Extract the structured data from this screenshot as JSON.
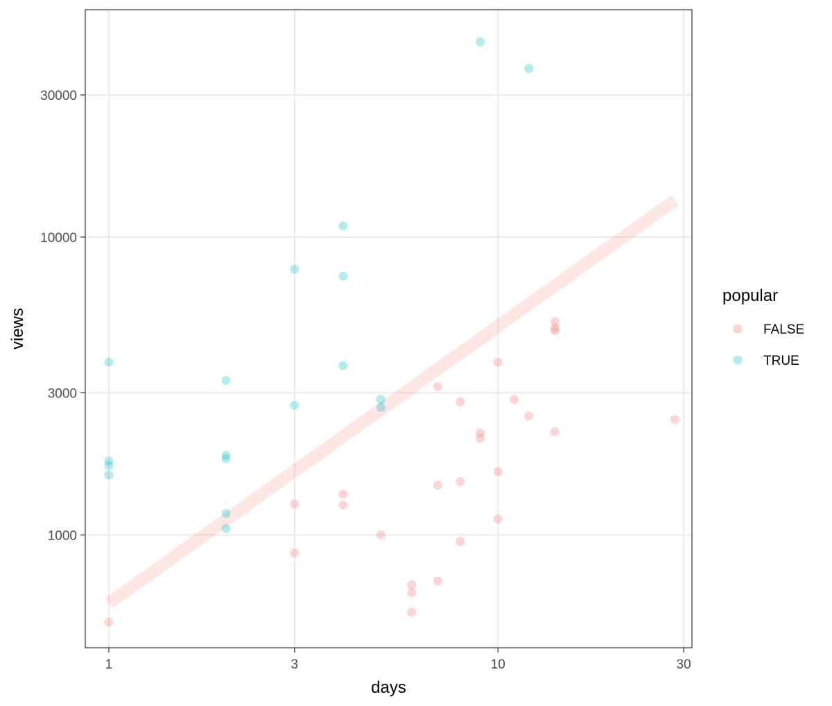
{
  "chart_data": {
    "type": "scatter",
    "xlabel": "days",
    "ylabel": "views",
    "x_scale": "log10",
    "y_scale": "log10",
    "xlim": [
      0.87,
      31.5
    ],
    "ylim": [
      418,
      58000
    ],
    "x_ticks": [
      {
        "value": 1,
        "label": "1"
      },
      {
        "value": 3,
        "label": "3"
      },
      {
        "value": 10,
        "label": "10"
      },
      {
        "value": 30,
        "label": "30"
      }
    ],
    "y_ticks": [
      {
        "value": 1000,
        "label": "1000"
      },
      {
        "value": 3000,
        "label": "3000"
      },
      {
        "value": 10000,
        "label": "10000"
      },
      {
        "value": 30000,
        "label": "30000"
      }
    ],
    "grid": true,
    "legend": {
      "title": "popular",
      "position": "right",
      "entries": [
        {
          "label": "FALSE",
          "color": "#F8766D"
        },
        {
          "label": "TRUE",
          "color": "#00BFC4"
        }
      ]
    },
    "point_opacity": 0.3,
    "trend_line": {
      "description": "linear fit on log-log scale",
      "color": "#F8766D",
      "opacity": 0.18,
      "from": [
        1,
        590
      ],
      "to": [
        28.5,
        13300
      ]
    },
    "series": [
      {
        "name": "FALSE",
        "color": "#F8766D",
        "points": [
          {
            "x": 1,
            "y": 510
          },
          {
            "x": 3,
            "y": 870
          },
          {
            "x": 3,
            "y": 1270
          },
          {
            "x": 4,
            "y": 1370
          },
          {
            "x": 4,
            "y": 1260
          },
          {
            "x": 5,
            "y": 1000
          },
          {
            "x": 6,
            "y": 680
          },
          {
            "x": 6,
            "y": 640
          },
          {
            "x": 6,
            "y": 550
          },
          {
            "x": 7,
            "y": 700
          },
          {
            "x": 7,
            "y": 1470
          },
          {
            "x": 7,
            "y": 3150
          },
          {
            "x": 8,
            "y": 950
          },
          {
            "x": 8,
            "y": 1510
          },
          {
            "x": 8,
            "y": 2800
          },
          {
            "x": 9,
            "y": 2200
          },
          {
            "x": 9,
            "y": 2110
          },
          {
            "x": 10,
            "y": 1130
          },
          {
            "x": 10,
            "y": 1630
          },
          {
            "x": 10,
            "y": 3800
          },
          {
            "x": 11,
            "y": 2850
          },
          {
            "x": 12,
            "y": 2510
          },
          {
            "x": 14,
            "y": 2220
          },
          {
            "x": 14,
            "y": 4850
          },
          {
            "x": 14,
            "y": 4950
          },
          {
            "x": 14,
            "y": 5200
          },
          {
            "x": 28.5,
            "y": 2440
          }
        ]
      },
      {
        "name": "TRUE",
        "color": "#00BFC4",
        "points": [
          {
            "x": 1,
            "y": 3800
          },
          {
            "x": 1,
            "y": 1770
          },
          {
            "x": 1,
            "y": 1710
          },
          {
            "x": 1,
            "y": 1590
          },
          {
            "x": 2,
            "y": 3300
          },
          {
            "x": 2,
            "y": 1850
          },
          {
            "x": 2,
            "y": 1800
          },
          {
            "x": 2,
            "y": 1180
          },
          {
            "x": 2,
            "y": 1050
          },
          {
            "x": 3,
            "y": 7800
          },
          {
            "x": 3,
            "y": 2720
          },
          {
            "x": 4,
            "y": 10900
          },
          {
            "x": 4,
            "y": 7400
          },
          {
            "x": 4,
            "y": 3700
          },
          {
            "x": 5,
            "y": 2850
          },
          {
            "x": 5,
            "y": 2680
          },
          {
            "x": 9,
            "y": 45200
          },
          {
            "x": 12,
            "y": 36800
          }
        ]
      }
    ]
  }
}
